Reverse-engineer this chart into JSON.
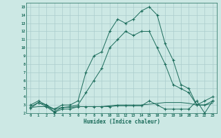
{
  "title": "",
  "xlabel": "Humidex (Indice chaleur)",
  "ylabel": "",
  "bg_color": "#cce8e4",
  "grid_color": "#aacccc",
  "line_color": "#1a6b5a",
  "marker": "+",
  "xlim": [
    -0.5,
    23.5
  ],
  "ylim": [
    2,
    15.5
  ],
  "yticks": [
    2,
    3,
    4,
    5,
    6,
    7,
    8,
    9,
    10,
    11,
    12,
    13,
    14,
    15
  ],
  "xticks": [
    0,
    1,
    2,
    3,
    4,
    5,
    6,
    7,
    8,
    9,
    10,
    11,
    12,
    13,
    14,
    15,
    16,
    17,
    18,
    19,
    20,
    21,
    22,
    23
  ],
  "series_max": [
    3.0,
    3.5,
    3.0,
    2.5,
    3.0,
    3.0,
    3.5,
    7.0,
    9.0,
    9.5,
    12.0,
    13.5,
    13.0,
    13.5,
    14.5,
    15.0,
    14.0,
    10.5,
    8.5,
    5.5,
    5.0,
    3.0,
    3.5,
    4.0
  ],
  "series_mid": [
    2.8,
    3.3,
    3.0,
    2.2,
    2.7,
    2.8,
    3.0,
    4.5,
    6.0,
    7.5,
    10.0,
    11.0,
    12.0,
    11.5,
    12.0,
    12.0,
    10.0,
    8.0,
    5.5,
    5.0,
    4.5,
    3.0,
    3.0,
    3.5
  ],
  "series_flat1": [
    2.7,
    2.8,
    2.8,
    2.5,
    2.7,
    2.7,
    2.8,
    2.8,
    2.8,
    2.8,
    2.9,
    3.0,
    3.0,
    3.0,
    3.0,
    3.1,
    3.2,
    3.3,
    3.3,
    3.3,
    3.2,
    3.0,
    3.0,
    3.2
  ],
  "series_flat2": [
    2.6,
    3.3,
    2.8,
    2.1,
    2.5,
    2.5,
    2.8,
    2.8,
    2.8,
    2.8,
    2.8,
    2.9,
    2.9,
    2.9,
    2.9,
    3.5,
    3.0,
    2.5,
    2.5,
    2.5,
    2.5,
    3.5,
    2.0,
    3.5
  ]
}
